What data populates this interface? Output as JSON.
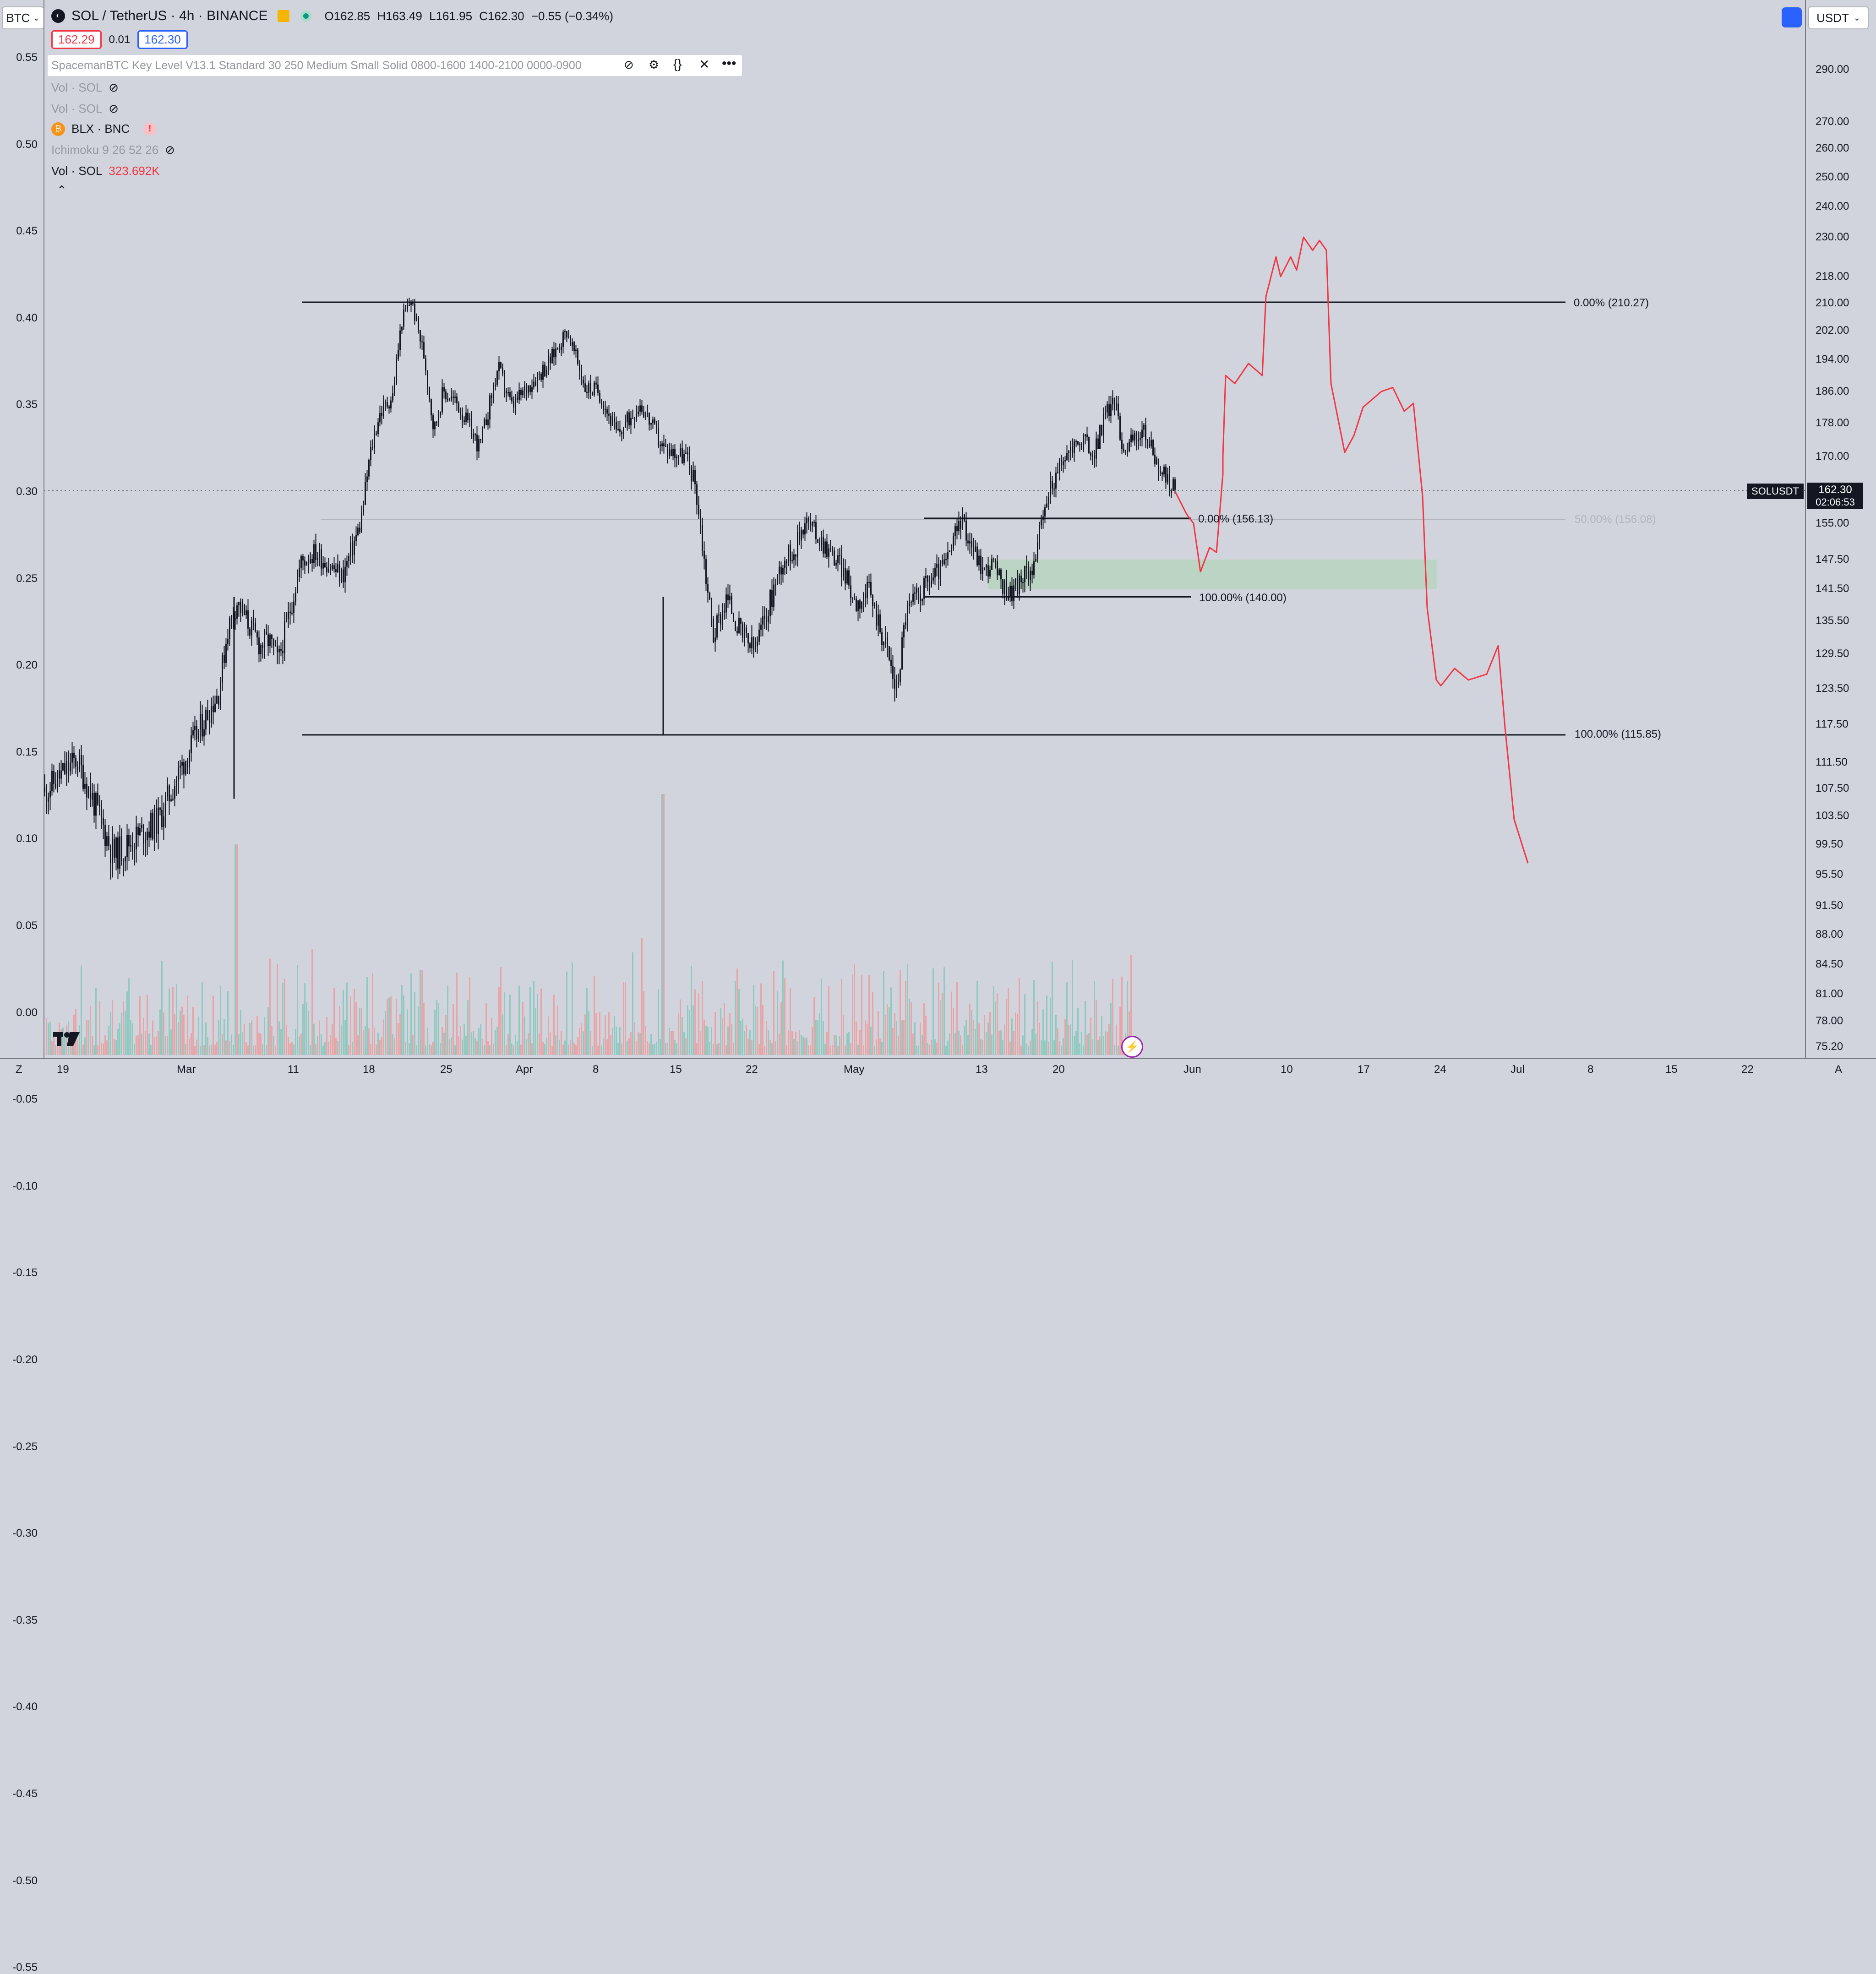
{
  "top_left_symbol": "BTC",
  "top_right_currency": "USDT",
  "symbol_title": "SOL / TetherUS · 4h · BINANCE",
  "ohlc": {
    "open_label": "O",
    "open": "162.85",
    "high_label": "H",
    "high": "163.49",
    "low_label": "L",
    "low": "161.95",
    "close_label": "C",
    "close": "162.30",
    "change": "−0.55 (−0.34%)"
  },
  "bid_ask": {
    "sell": "162.29",
    "spread": "0.01",
    "buy": "162.30"
  },
  "indicators": {
    "spaceman": "SpacemanBTC Key Level V13.1 Standard 30 250 Medium Small Solid 0800-1600 1400-2100 0000-0900",
    "vol1": "Vol · SOL",
    "vol2": "Vol · SOL",
    "blx": "BLX · BNC",
    "ichimoku": "Ichimoku 9 26 52 26",
    "vol_active": "Vol · SOL",
    "vol_value": "323.692K"
  },
  "colors": {
    "background": "#d1d4dc",
    "candle": "#131722",
    "projection": "#f23645",
    "sell": "#f23645",
    "buy": "#2962ff",
    "zone": "#b9d4c0",
    "vol_up": "#8fc9bf",
    "vol_down": "#e7a5a8"
  },
  "left_axis": [
    "0.55",
    "0.50",
    "0.45",
    "0.40",
    "0.35",
    "0.30",
    "0.25",
    "0.20",
    "0.15",
    "0.10",
    "0.05",
    "0.00",
    "-0.05",
    "-0.10",
    "-0.15",
    "-0.20",
    "-0.25",
    "-0.30",
    "-0.35",
    "-0.40",
    "-0.45",
    "-0.50",
    "-0.55"
  ],
  "right_axis": [
    "290.00",
    "270.00",
    "260.00",
    "250.00",
    "240.00",
    "230.00",
    "218.00",
    "210.00",
    "202.00",
    "194.00",
    "186.00",
    "178.00",
    "170.00",
    "155.00",
    "147.50",
    "141.50",
    "135.50",
    "129.50",
    "123.50",
    "117.50",
    "111.50",
    "107.50",
    "103.50",
    "99.50",
    "95.50",
    "91.50",
    "88.00",
    "84.50",
    "81.00",
    "78.00",
    "75.20"
  ],
  "price_tag": {
    "symbol": "SOLUSDT",
    "price": "162.30",
    "countdown": "02:06:53"
  },
  "x_axis": [
    "19",
    "Mar",
    "11",
    "18",
    "25",
    "Apr",
    "8",
    "15",
    "22",
    "May",
    "13",
    "20",
    "Jun",
    "10",
    "17",
    "24",
    "Jul",
    "8",
    "15",
    "22"
  ],
  "x_axis_left_letter": "Z",
  "x_axis_right_letter": "A",
  "fib_labels": {
    "big_top": "0.00% (210.27)",
    "big_bottom": "100.00% (115.85)",
    "small_top": "0.00% (156.13)",
    "small_bottom": "100.00% (140.00)",
    "faded_mid": "50.00% (156.08)"
  },
  "chart_data": {
    "type": "candlestick",
    "symbol": "SOLUSDT",
    "interval": "4h",
    "price_path": [
      [
        0,
        107
      ],
      [
        70,
        112
      ],
      [
        150,
        98
      ],
      [
        250,
        103
      ],
      [
        300,
        111
      ],
      [
        380,
        123
      ],
      [
        400,
        134
      ],
      [
        420,
        139
      ],
      [
        470,
        131
      ],
      [
        490,
        132
      ],
      [
        510,
        128
      ],
      [
        545,
        141
      ],
      [
        560,
        147
      ],
      [
        590,
        149
      ],
      [
        650,
        144
      ],
      [
        690,
        155
      ],
      [
        710,
        170
      ],
      [
        730,
        180
      ],
      [
        760,
        185
      ],
      [
        780,
        205
      ],
      [
        800,
        211
      ],
      [
        830,
        194
      ],
      [
        850,
        176
      ],
      [
        870,
        186
      ],
      [
        900,
        183
      ],
      [
        950,
        172
      ],
      [
        990,
        192
      ],
      [
        1020,
        182
      ],
      [
        1060,
        188
      ],
      [
        1100,
        193
      ],
      [
        1140,
        202
      ],
      [
        1180,
        187
      ],
      [
        1210,
        186
      ],
      [
        1250,
        175
      ],
      [
        1300,
        183
      ],
      [
        1350,
        172
      ],
      [
        1400,
        170
      ],
      [
        1420,
        164
      ],
      [
        1430,
        156
      ],
      [
        1445,
        143
      ],
      [
        1460,
        133
      ],
      [
        1490,
        140
      ],
      [
        1520,
        133
      ],
      [
        1550,
        130
      ],
      [
        1580,
        138
      ],
      [
        1610,
        147
      ],
      [
        1640,
        150
      ],
      [
        1660,
        156
      ],
      [
        1700,
        151
      ],
      [
        1740,
        146
      ],
      [
        1770,
        139
      ],
      [
        1800,
        141
      ],
      [
        1840,
        130
      ],
      [
        1860,
        123
      ],
      [
        1880,
        137
      ],
      [
        1920,
        142
      ],
      [
        1970,
        147
      ],
      [
        2000,
        156
      ],
      [
        2050,
        145
      ],
      [
        2070,
        147
      ],
      [
        2090,
        142
      ],
      [
        2110,
        141
      ],
      [
        2140,
        144
      ],
      [
        2160,
        147
      ],
      [
        2195,
        163
      ],
      [
        2220,
        168
      ],
      [
        2240,
        172
      ],
      [
        2270,
        174
      ],
      [
        2290,
        170
      ],
      [
        2315,
        180
      ],
      [
        2335,
        184
      ],
      [
        2355,
        172
      ],
      [
        2400,
        176
      ],
      [
        2440,
        166
      ],
      [
        2470,
        162
      ]
    ],
    "projection_path": [
      [
        2470,
        162
      ],
      [
        2495,
        157
      ],
      [
        2510,
        155
      ],
      [
        2525,
        145
      ],
      [
        2545,
        150
      ],
      [
        2560,
        149
      ],
      [
        2574,
        166
      ],
      [
        2574,
        170
      ],
      [
        2580,
        190
      ],
      [
        2600,
        188
      ],
      [
        2630,
        193
      ],
      [
        2660,
        190
      ],
      [
        2668,
        212
      ],
      [
        2690,
        224
      ],
      [
        2700,
        218
      ],
      [
        2722,
        224
      ],
      [
        2735,
        220
      ],
      [
        2750,
        230
      ],
      [
        2770,
        226
      ],
      [
        2785,
        229
      ],
      [
        2800,
        226
      ],
      [
        2810,
        188
      ],
      [
        2840,
        171
      ],
      [
        2860,
        175
      ],
      [
        2880,
        182
      ],
      [
        2920,
        186
      ],
      [
        2945,
        187
      ],
      [
        2970,
        181
      ],
      [
        2990,
        183
      ],
      [
        3010,
        161
      ],
      [
        3020,
        138
      ],
      [
        3040,
        125
      ],
      [
        3050,
        124
      ],
      [
        3080,
        127
      ],
      [
        3110,
        125
      ],
      [
        3150,
        126
      ],
      [
        3175,
        131
      ],
      [
        3190,
        117
      ],
      [
        3210,
        103
      ],
      [
        3240,
        97
      ]
    ],
    "fib_levels": [
      {
        "label": "0.00%",
        "value": 210.27
      },
      {
        "label": "100.00%",
        "value": 115.85
      },
      {
        "label": "0.00%",
        "value": 156.13
      },
      {
        "label": "100.00%",
        "value": 140.0
      },
      {
        "label": "50.00%",
        "value": 156.08
      }
    ],
    "demand_zone": {
      "top": 147.5,
      "bottom": 141.5
    },
    "last_price": 162.3,
    "volume_last": "323.692K"
  }
}
